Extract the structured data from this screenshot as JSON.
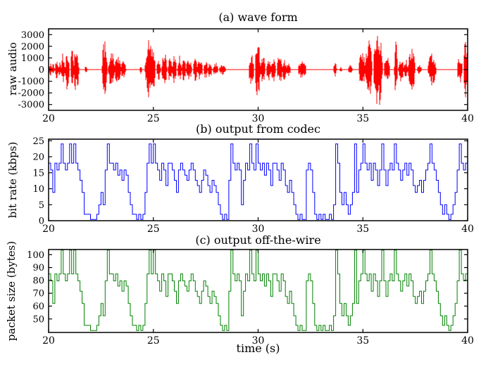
{
  "figure": {
    "background": "#ffffff",
    "text_color": "#000000",
    "xlabel": "time (s)"
  },
  "chart_data": [
    {
      "type": "line",
      "subtype": "waveform",
      "title": "(a) wave form",
      "ylabel": "raw audio",
      "color": "#ff0000",
      "xlim": [
        20,
        40
      ],
      "ylim": [
        -3500,
        3500
      ],
      "xticks": [
        20,
        25,
        30,
        35,
        40
      ],
      "yticks": [
        3000,
        2000,
        1000,
        0,
        -1000,
        -2000,
        -3000
      ],
      "grid": false,
      "bursts_format": [
        "t_start_s",
        "t_end_s",
        "peak_amplitude"
      ],
      "bursts": [
        [
          20.0,
          20.15,
          600
        ],
        [
          20.15,
          20.3,
          500
        ],
        [
          20.3,
          20.45,
          800
        ],
        [
          20.45,
          20.6,
          650
        ],
        [
          20.6,
          20.78,
          1500
        ],
        [
          20.8,
          21.0,
          1800
        ],
        [
          21.05,
          21.2,
          1700
        ],
        [
          21.2,
          21.45,
          2100
        ],
        [
          21.72,
          21.85,
          300
        ],
        [
          22.55,
          22.8,
          2600
        ],
        [
          22.85,
          23.15,
          1600
        ],
        [
          23.15,
          23.45,
          1300
        ],
        [
          23.45,
          23.7,
          800
        ],
        [
          24.35,
          24.45,
          400
        ],
        [
          24.6,
          25.1,
          2800
        ],
        [
          25.15,
          25.35,
          1000
        ],
        [
          25.4,
          25.65,
          1500
        ],
        [
          25.7,
          25.9,
          1100
        ],
        [
          25.9,
          26.1,
          1300
        ],
        [
          26.15,
          26.35,
          1200
        ],
        [
          26.35,
          26.55,
          1100
        ],
        [
          26.55,
          26.85,
          900
        ],
        [
          26.9,
          27.1,
          1000
        ],
        [
          27.1,
          27.35,
          900
        ],
        [
          27.4,
          27.6,
          800
        ],
        [
          27.6,
          27.8,
          700
        ],
        [
          27.85,
          28.1,
          600
        ],
        [
          28.15,
          28.45,
          500
        ],
        [
          29.55,
          29.8,
          1400
        ],
        [
          29.85,
          30.1,
          2600
        ],
        [
          30.1,
          30.35,
          1200
        ],
        [
          30.4,
          30.6,
          1000
        ],
        [
          30.6,
          30.85,
          1100
        ],
        [
          30.9,
          31.15,
          1300
        ],
        [
          31.15,
          31.35,
          900
        ],
        [
          31.35,
          31.55,
          700
        ],
        [
          31.9,
          32.3,
          800
        ],
        [
          33.6,
          33.75,
          600
        ],
        [
          33.9,
          34.0,
          250
        ],
        [
          34.3,
          34.5,
          400
        ],
        [
          34.8,
          35.1,
          1800
        ],
        [
          35.1,
          35.45,
          2600
        ],
        [
          35.5,
          35.95,
          3400
        ],
        [
          36.0,
          36.3,
          1200
        ],
        [
          36.5,
          36.65,
          2500
        ],
        [
          36.7,
          36.95,
          1100
        ],
        [
          36.95,
          37.15,
          900
        ],
        [
          37.15,
          37.5,
          2000
        ],
        [
          37.6,
          37.8,
          500
        ],
        [
          38.1,
          38.5,
          1400
        ],
        [
          39.5,
          39.75,
          1200
        ],
        [
          39.8,
          40.0,
          2400
        ]
      ]
    },
    {
      "type": "line",
      "subtype": "step",
      "title": "(b) output from codec",
      "ylabel": "bit rate (kbps)",
      "color": "#0000ff",
      "xlim": [
        20,
        40
      ],
      "ylim": [
        0,
        25.5
      ],
      "xticks": [
        20,
        25,
        30,
        35,
        40
      ],
      "yticks": [
        0,
        5,
        10,
        15,
        20,
        25
      ],
      "grid": false,
      "x_start": 20.0,
      "x_step": 0.1,
      "values": [
        18,
        15.85,
        8.85,
        18,
        15.85,
        18,
        24,
        18,
        15.85,
        18,
        24,
        18,
        24,
        18,
        15.85,
        12.65,
        8.85,
        2,
        2,
        2,
        0.4,
        0.4,
        0.4,
        2,
        5,
        8.85,
        5,
        15.85,
        24,
        18,
        18,
        15.85,
        18,
        14.25,
        15.85,
        12.65,
        15.85,
        14.25,
        8.85,
        5,
        2,
        2,
        0.4,
        2,
        0.4,
        2,
        8.85,
        18,
        24,
        18,
        24,
        18,
        15.85,
        12.65,
        18,
        15.85,
        11,
        18,
        18,
        15.85,
        12.65,
        8.85,
        15.85,
        18,
        15.85,
        14.25,
        12.65,
        15.85,
        18,
        15.85,
        12.65,
        11,
        8.85,
        12.65,
        15.85,
        14.25,
        11,
        8.85,
        12.65,
        11,
        8.85,
        5,
        2,
        0.4,
        2,
        0.4,
        12.65,
        24,
        18,
        15.85,
        18,
        15.85,
        5,
        12.65,
        18,
        15.85,
        24,
        18,
        15.85,
        24,
        18,
        15.85,
        18,
        14.25,
        18,
        15.85,
        11,
        18,
        18,
        15.85,
        12.65,
        18,
        15.85,
        11,
        8.85,
        12.65,
        8.85,
        5,
        2,
        0.4,
        2,
        0.4,
        0.4,
        15.85,
        18,
        15.85,
        8.85,
        2,
        0.4,
        2,
        0.4,
        2,
        0.4,
        0.4,
        2,
        0.4,
        5,
        24,
        18,
        8.85,
        5,
        8.85,
        5,
        2,
        5,
        8.85,
        24,
        8.85,
        15.85,
        18,
        24,
        18,
        15.85,
        18,
        12.65,
        18,
        15.85,
        11,
        15.85,
        24,
        15.85,
        11,
        15.85,
        18,
        15.85,
        24,
        18,
        15.85,
        12.65,
        15.85,
        18,
        14.25,
        18,
        15.85,
        11,
        8.85,
        11,
        12.65,
        8.85,
        12.65,
        15.85,
        18,
        24,
        18,
        15.85,
        12.65,
        8.85,
        5,
        2,
        5,
        2,
        0.4,
        2,
        5,
        8.85,
        15.85,
        24,
        18,
        15.85,
        18
      ]
    },
    {
      "type": "line",
      "subtype": "step",
      "title": "(c) output off-the-wire",
      "ylabel": "packet size (bytes)",
      "color": "#008000",
      "xlim": [
        20,
        40
      ],
      "ylim": [
        39.5,
        104
      ],
      "xticks": [
        20,
        25,
        30,
        35,
        40
      ],
      "yticks": [
        50,
        60,
        70,
        80,
        90,
        100
      ],
      "grid": false,
      "x_start": 20.0,
      "x_step": 0.1,
      "values": [
        85,
        79.6,
        62.1,
        85,
        79.6,
        85,
        103.5,
        85,
        79.6,
        85,
        103.5,
        85,
        103.5,
        85,
        79.6,
        71.6,
        62.1,
        45,
        45,
        45,
        41,
        41,
        41,
        45,
        52.5,
        62.1,
        52.5,
        79.6,
        103.5,
        85,
        85,
        79.6,
        85,
        75.6,
        79.6,
        71.6,
        79.6,
        75.6,
        62.1,
        52.5,
        45,
        45,
        41,
        45,
        41,
        45,
        62.1,
        85,
        103.5,
        85,
        103.5,
        85,
        79.6,
        71.6,
        85,
        79.6,
        67.5,
        85,
        85,
        79.6,
        71.6,
        62.1,
        79.6,
        85,
        79.6,
        75.6,
        71.6,
        79.6,
        85,
        79.6,
        71.6,
        67.5,
        62.1,
        71.6,
        79.6,
        75.6,
        67.5,
        62.1,
        71.6,
        67.5,
        62.1,
        52.5,
        45,
        41,
        45,
        41,
        71.6,
        103.5,
        85,
        79.6,
        85,
        79.6,
        52.5,
        71.6,
        85,
        79.6,
        103.5,
        85,
        79.6,
        103.5,
        85,
        79.6,
        85,
        75.6,
        85,
        79.6,
        67.5,
        85,
        85,
        79.6,
        71.6,
        85,
        79.6,
        67.5,
        62.1,
        71.6,
        62.1,
        52.5,
        45,
        41,
        45,
        41,
        41,
        79.6,
        85,
        79.6,
        62.1,
        45,
        41,
        45,
        41,
        45,
        41,
        41,
        45,
        41,
        52.5,
        103.5,
        85,
        62.1,
        52.5,
        62.1,
        52.5,
        45,
        52.5,
        62.1,
        103.5,
        62.1,
        79.6,
        85,
        103.5,
        85,
        79.6,
        85,
        71.6,
        85,
        79.6,
        67.5,
        79.6,
        103.5,
        79.6,
        67.5,
        79.6,
        85,
        79.6,
        103.5,
        85,
        79.6,
        71.6,
        79.6,
        85,
        75.6,
        85,
        79.6,
        67.5,
        62.1,
        67.5,
        71.6,
        62.1,
        71.6,
        79.6,
        85,
        103.5,
        85,
        79.6,
        71.6,
        62.1,
        52.5,
        45,
        52.5,
        45,
        41,
        45,
        52.5,
        62.1,
        79.6,
        103.5,
        85,
        79.6,
        85
      ]
    }
  ]
}
